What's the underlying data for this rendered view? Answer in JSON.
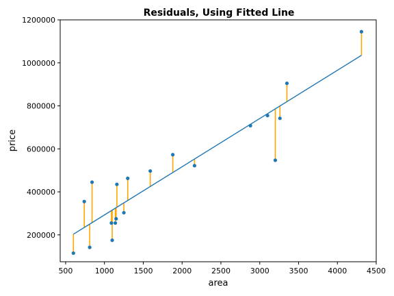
{
  "chart_data": {
    "type": "scatter",
    "title": "Residuals, Using Fitted Line",
    "xlabel": "area",
    "ylabel": "price",
    "xlim": [
      430,
      4500
    ],
    "ylim": [
      75000,
      1200000
    ],
    "xticks": [
      500,
      1000,
      1500,
      2000,
      2500,
      3000,
      3500,
      4000,
      4500
    ],
    "yticks": [
      200000,
      400000,
      600000,
      800000,
      1000000,
      1200000
    ],
    "grid": false,
    "colors": {
      "points": "#1f77b4",
      "line": "#1f77b4",
      "residuals": "#ffa500"
    },
    "fitted_line": {
      "x": [
        600,
        4310
      ],
      "y": [
        203000,
        1035000
      ]
    },
    "points": [
      {
        "x": 600,
        "y": 115000,
        "fit": 203000
      },
      {
        "x": 740,
        "y": 355000,
        "fit": 234000
      },
      {
        "x": 810,
        "y": 142000,
        "fit": 250000
      },
      {
        "x": 840,
        "y": 445000,
        "fit": 257000
      },
      {
        "x": 1090,
        "y": 255000,
        "fit": 313000
      },
      {
        "x": 1100,
        "y": 175000,
        "fit": 315000
      },
      {
        "x": 1140,
        "y": 255000,
        "fit": 324000
      },
      {
        "x": 1150,
        "y": 275000,
        "fit": 326000
      },
      {
        "x": 1160,
        "y": 435000,
        "fit": 328000
      },
      {
        "x": 1250,
        "y": 303000,
        "fit": 349000
      },
      {
        "x": 1300,
        "y": 463000,
        "fit": 360000
      },
      {
        "x": 1590,
        "y": 497000,
        "fit": 425000
      },
      {
        "x": 1880,
        "y": 573000,
        "fit": 490000
      },
      {
        "x": 2160,
        "y": 522000,
        "fit": 553000
      },
      {
        "x": 2880,
        "y": 708000,
        "fit": 714000
      },
      {
        "x": 3100,
        "y": 755000,
        "fit": 763000
      },
      {
        "x": 3200,
        "y": 547000,
        "fit": 786000
      },
      {
        "x": 3260,
        "y": 742000,
        "fit": 799000
      },
      {
        "x": 3350,
        "y": 905000,
        "fit": 820000
      },
      {
        "x": 4310,
        "y": 1145000,
        "fit": 1035000
      }
    ]
  }
}
